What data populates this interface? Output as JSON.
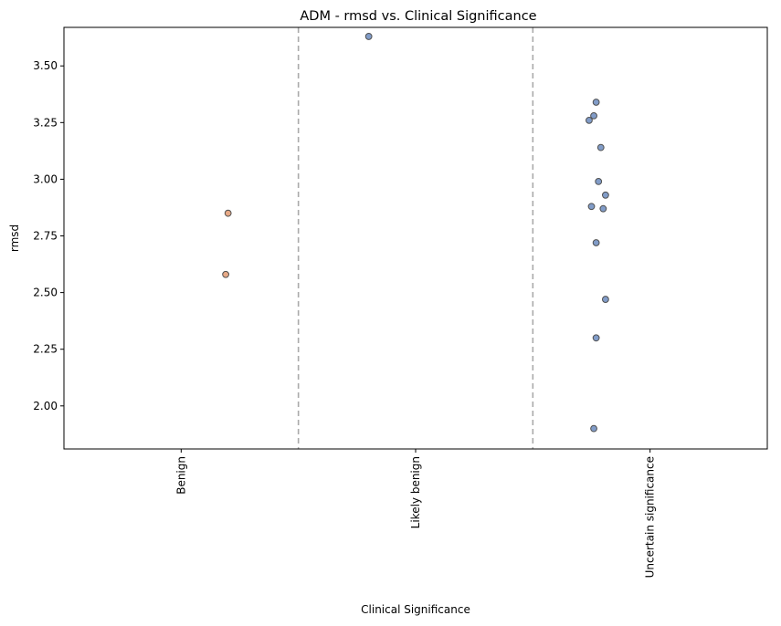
{
  "chart_data": {
    "type": "scatter",
    "title": "ADM - rmsd vs. Clinical Significance",
    "xlabel": "Clinical Significance",
    "ylabel": "rmsd",
    "categories": [
      "Benign",
      "Likely benign",
      "Uncertain significance"
    ],
    "ylim": [
      1.81,
      3.67
    ],
    "yticks": [
      "2.00",
      "2.25",
      "2.50",
      "2.75",
      "3.00",
      "3.25",
      "3.50"
    ],
    "grid": false,
    "category_separators": "dashed",
    "series": [
      {
        "category": "Benign",
        "color": "#dd8452",
        "points": [
          {
            "x_jitter": 0.2,
            "y": 2.85
          },
          {
            "x_jitter": 0.19,
            "y": 2.58
          }
        ]
      },
      {
        "category": "Likely benign",
        "color": "#4c72b0",
        "points": [
          {
            "x_jitter": -0.2,
            "y": 3.63
          }
        ]
      },
      {
        "category": "Uncertain significance",
        "color": "#4c72b0",
        "points": [
          {
            "x_jitter": -0.23,
            "y": 3.34
          },
          {
            "x_jitter": -0.24,
            "y": 3.28
          },
          {
            "x_jitter": -0.26,
            "y": 3.26
          },
          {
            "x_jitter": -0.21,
            "y": 3.14
          },
          {
            "x_jitter": -0.22,
            "y": 2.99
          },
          {
            "x_jitter": -0.19,
            "y": 2.93
          },
          {
            "x_jitter": -0.25,
            "y": 2.88
          },
          {
            "x_jitter": -0.2,
            "y": 2.87
          },
          {
            "x_jitter": -0.23,
            "y": 2.72
          },
          {
            "x_jitter": -0.19,
            "y": 2.47
          },
          {
            "x_jitter": -0.23,
            "y": 2.3
          },
          {
            "x_jitter": -0.24,
            "y": 1.9
          }
        ]
      }
    ]
  }
}
